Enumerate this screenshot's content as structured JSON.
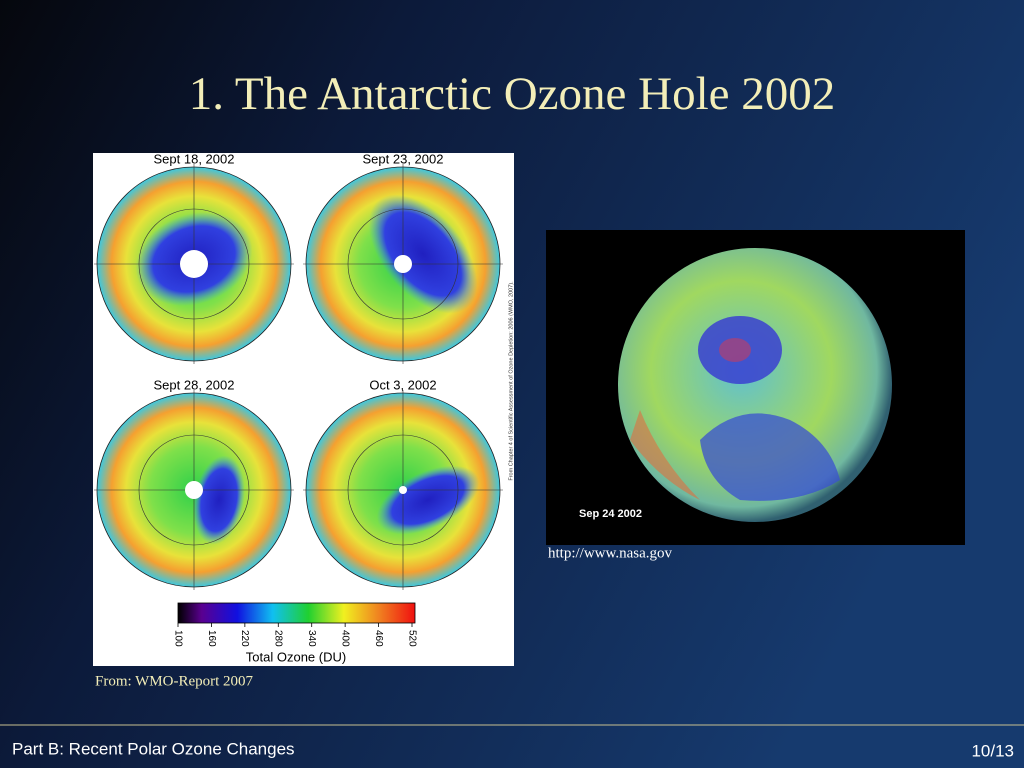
{
  "slide": {
    "title": "1. The Antarctic Ozone Hole 2002",
    "figure_left": {
      "panels": [
        {
          "date": "Sept 18, 2002"
        },
        {
          "date": "Sept 23, 2002"
        },
        {
          "date": "Sept 28, 2002"
        },
        {
          "date": "Oct 3, 2002"
        }
      ],
      "colorbar": {
        "ticks": [
          100,
          160,
          220,
          280,
          340,
          400,
          460,
          520
        ],
        "label": "Total Ozone (DU)"
      },
      "credit_vertical": "From Chapter 4 of Scientific Assessment of Ozone Depletion: 2006 (WMO, 2007).",
      "caption": "From: WMO-Report 2007"
    },
    "figure_right": {
      "date": "Sep 24 2002",
      "caption": "http://www.nasa.gov"
    },
    "footer": {
      "section": "Part B: Recent Polar Ozone Changes",
      "page": "10/13"
    }
  }
}
